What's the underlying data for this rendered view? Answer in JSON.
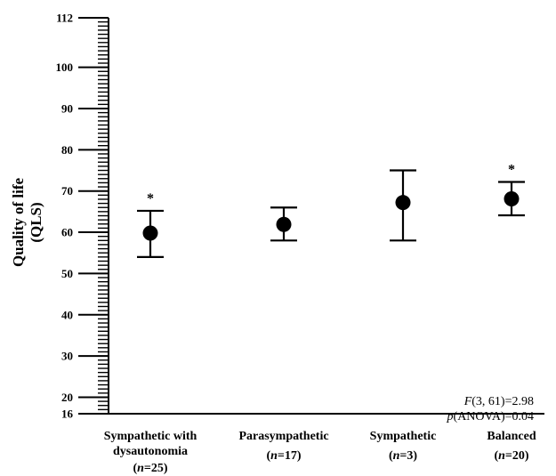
{
  "chart_data": {
    "type": "scatter",
    "title": "",
    "xlabel": "",
    "ylabel_lines": [
      "Quality of life",
      "(QLS)"
    ],
    "ylim": [
      16,
      112
    ],
    "yticks": [
      16,
      20,
      30,
      40,
      50,
      60,
      70,
      80,
      90,
      100,
      112
    ],
    "minor_tick_step": 1,
    "grid": false,
    "categories": [
      {
        "lines": [
          "Sympathetic with",
          "dysautonomia"
        ],
        "n_prefix": "(",
        "n_symbol": "n",
        "n_value": "=25)"
      },
      {
        "lines": [
          "Parasympathetic"
        ],
        "n_prefix": "(",
        "n_symbol": "n",
        "n_value": "=17)"
      },
      {
        "lines": [
          "Sympathetic"
        ],
        "n_prefix": "(",
        "n_symbol": "n",
        "n_value": "=3)"
      },
      {
        "lines": [
          "Balanced"
        ],
        "n_prefix": "(",
        "n_symbol": "n",
        "n_value": "=20)"
      }
    ],
    "series": [
      {
        "means": [
          59.8,
          61.9,
          67.2,
          68.1
        ],
        "lower": [
          54.0,
          58.0,
          58.0,
          64.1
        ],
        "upper": [
          65.2,
          66.0,
          75.0,
          72.2
        ],
        "significance": [
          "*",
          "",
          "",
          "*"
        ]
      }
    ],
    "annotations": {
      "line1": {
        "italic": "F",
        "rest": "(3, 61)=2.98"
      },
      "line2": {
        "italic": "p",
        "rest": "(ANOVA)=0.04"
      }
    }
  }
}
